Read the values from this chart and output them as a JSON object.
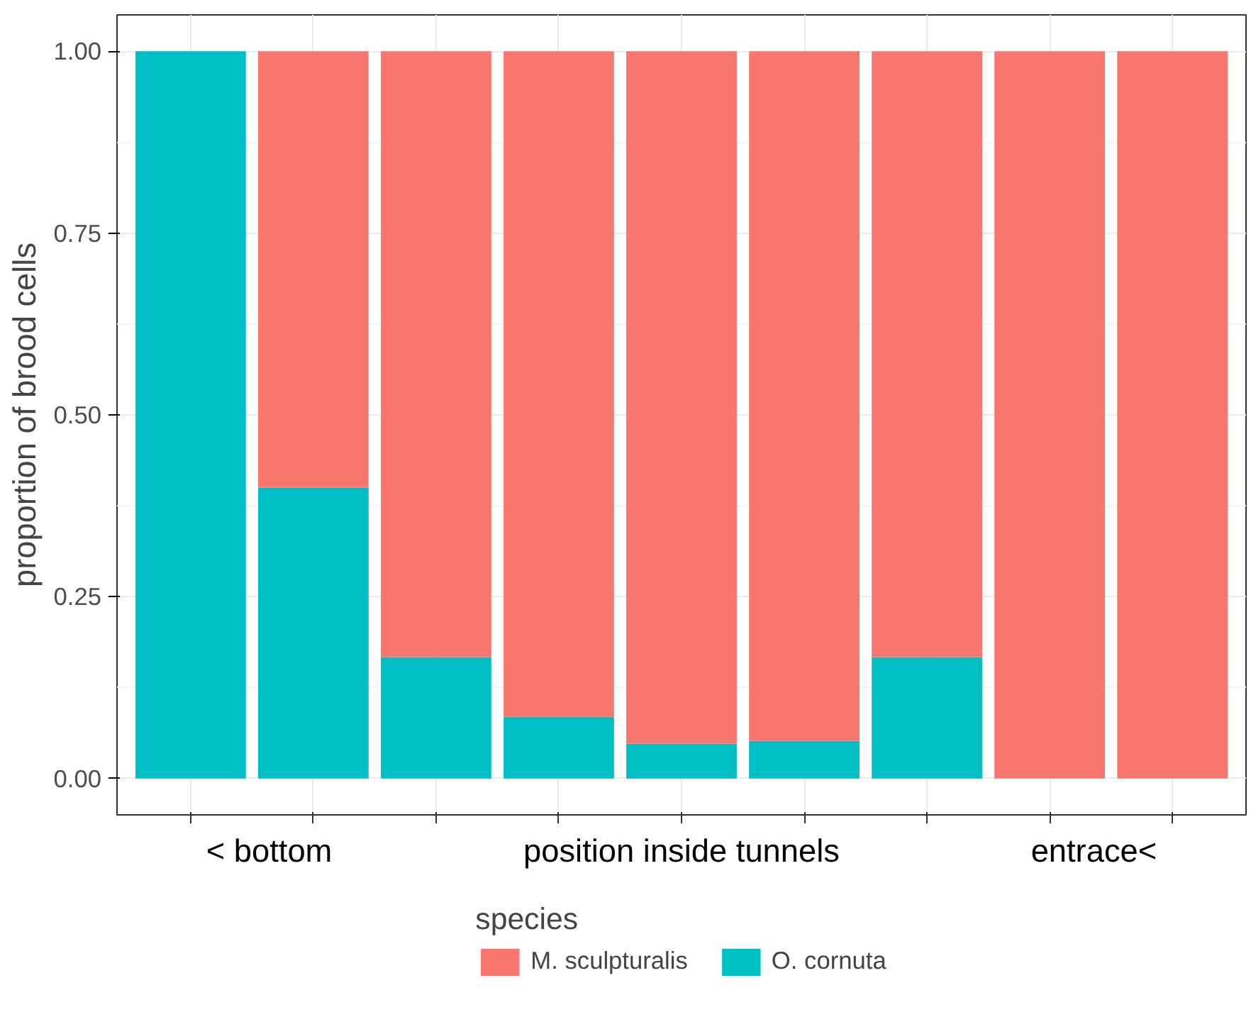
{
  "chart_data": {
    "type": "bar",
    "stacked": true,
    "ylabel": "proportion of brood cells",
    "legend_title": "species",
    "categories": [
      null,
      null,
      null,
      null,
      null,
      null,
      null,
      null,
      null
    ],
    "series": [
      {
        "name": "O. cornuta",
        "color": "#00bfc4",
        "values": [
          1,
          0.4,
          0.167,
          0.085,
          0.048,
          0.052,
          0.167,
          0,
          0
        ]
      },
      {
        "name": "M. sculpturalis",
        "color": "#f8766d",
        "values": [
          0,
          0.6,
          0.833,
          0.915,
          0.952,
          0.948,
          0.833,
          1,
          1
        ]
      }
    ],
    "annotations": [
      "< bottom",
      "position inside tunnels",
      "entrace<"
    ],
    "ylim": [
      -0.05,
      1.05
    ],
    "yticks": [
      {
        "value": 0,
        "label": "0.00"
      },
      {
        "value": 0.25,
        "label": "0.25"
      },
      {
        "value": 0.5,
        "label": "0.50"
      },
      {
        "value": 0.75,
        "label": "0.75"
      },
      {
        "value": 1,
        "label": "1.00"
      }
    ],
    "grid": true,
    "legend": "bottom"
  }
}
